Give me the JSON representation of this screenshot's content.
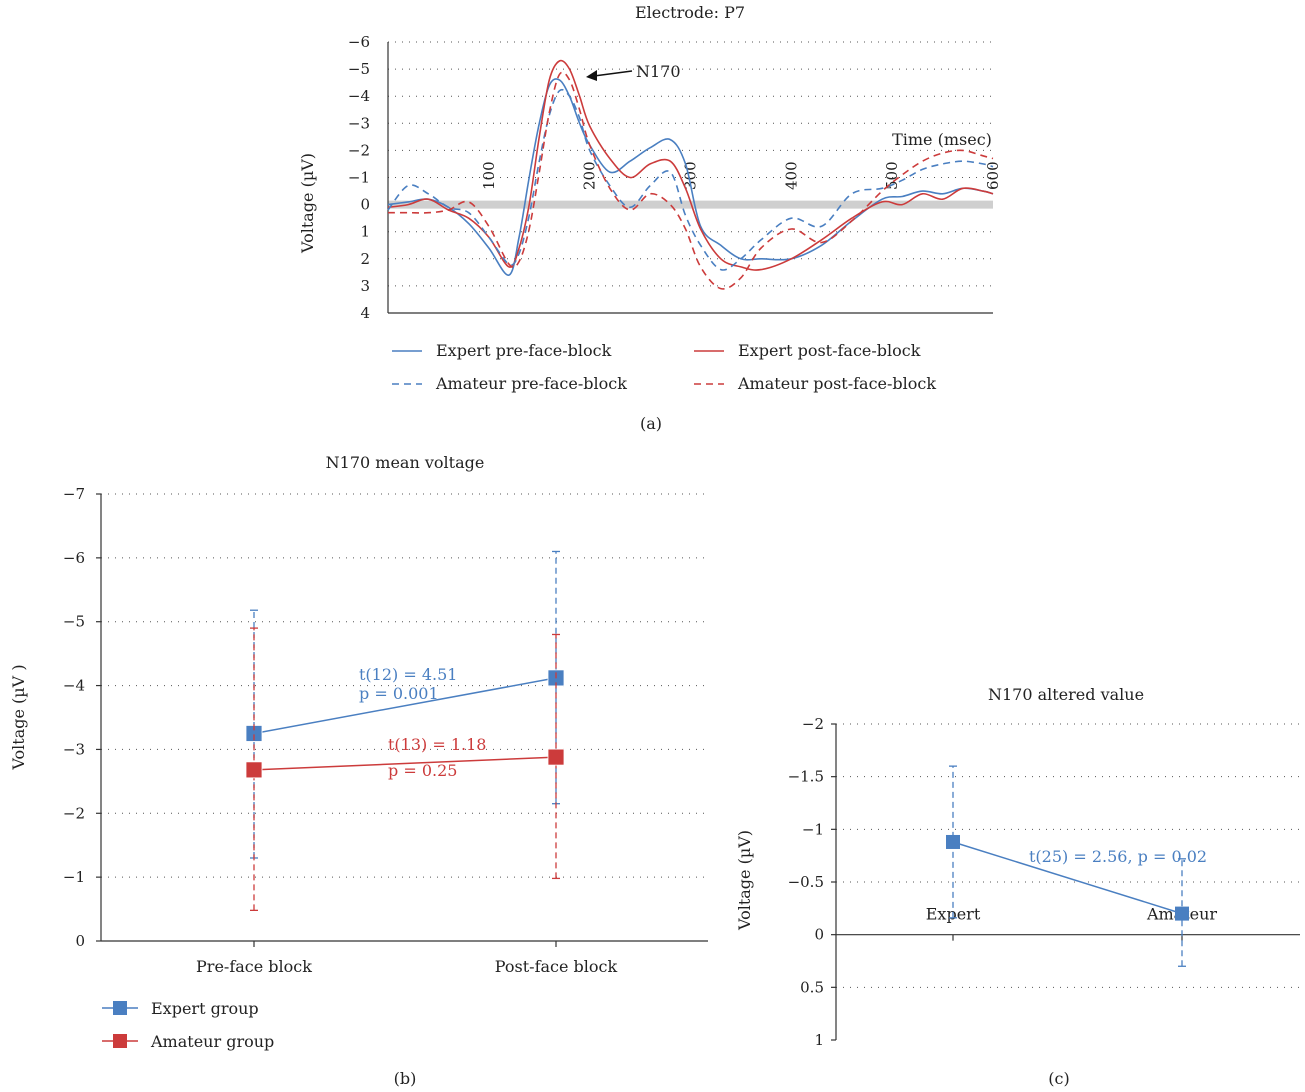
{
  "chart_data": [
    {
      "type": "line",
      "title": "Electrode: P7",
      "ylabel": "Voltage (µV)",
      "xlabel": "Time (msec)",
      "x_ticks": [
        100,
        200,
        300,
        400,
        500,
        600
      ],
      "y_ticks": [
        -6,
        -5,
        -4,
        -3,
        -2,
        -1,
        0,
        1,
        2,
        3,
        4
      ],
      "y_tick_labels": [
        "−6",
        "−5",
        "−4",
        "−3",
        "−2",
        "−1",
        "0",
        "1",
        "2",
        "3",
        "4"
      ],
      "xlim": [
        0,
        600
      ],
      "ylim": [
        -6,
        4
      ],
      "y_inverted": true,
      "grid": true,
      "annotation": "N170",
      "panel_label": "(a)",
      "legend_position": "bottom",
      "series": [
        {
          "name": "Expert pre-face-block",
          "color": "#4a7fc1",
          "dash": "solid",
          "x": [
            0,
            20,
            40,
            60,
            80,
            100,
            120,
            130,
            140,
            150,
            160,
            170,
            180,
            190,
            200,
            220,
            240,
            260,
            280,
            295,
            310,
            330,
            350,
            370,
            400,
            430,
            460,
            490,
            510,
            530,
            550,
            570,
            590,
            600
          ],
          "y": [
            0,
            -0.1,
            -0.2,
            0.1,
            0.7,
            1.6,
            2.6,
            1.2,
            -1,
            -3,
            -4.4,
            -4.6,
            -4,
            -3,
            -2.2,
            -1.2,
            -1.6,
            -2.1,
            -2.4,
            -1.5,
            0.8,
            1.5,
            2,
            2,
            2,
            1.5,
            0.6,
            -0.2,
            -0.3,
            -0.5,
            -0.4,
            -0.6,
            -0.5,
            -0.4
          ]
        },
        {
          "name": "Expert post-face-block",
          "color": "#cc3b3b",
          "dash": "solid",
          "x": [
            0,
            20,
            40,
            60,
            80,
            100,
            120,
            130,
            140,
            150,
            160,
            170,
            180,
            190,
            200,
            220,
            240,
            260,
            280,
            295,
            310,
            330,
            350,
            370,
            400,
            430,
            460,
            490,
            510,
            530,
            550,
            570,
            590,
            600
          ],
          "y": [
            0.1,
            0,
            -0.2,
            0.2,
            0.5,
            1.2,
            2.3,
            1.6,
            0,
            -2.5,
            -4.6,
            -5.3,
            -5,
            -4,
            -2.9,
            -1.7,
            -1,
            -1.5,
            -1.6,
            -0.6,
            0.9,
            2,
            2.3,
            2.4,
            2,
            1.3,
            0.5,
            -0.1,
            0,
            -0.4,
            -0.2,
            -0.6,
            -0.5,
            -0.4
          ]
        },
        {
          "name": "Amateur pre-face-block",
          "color": "#4a7fc1",
          "dash": "dashed",
          "x": [
            0,
            20,
            40,
            60,
            80,
            100,
            120,
            130,
            140,
            150,
            160,
            170,
            180,
            190,
            200,
            220,
            240,
            260,
            280,
            295,
            310,
            330,
            350,
            370,
            400,
            430,
            460,
            490,
            510,
            530,
            550,
            570,
            590,
            600
          ],
          "y": [
            0.2,
            -0.7,
            -0.4,
            0.1,
            0.3,
            1.2,
            2.2,
            1.8,
            0.4,
            -1.6,
            -3.3,
            -4.2,
            -4,
            -3.2,
            -2,
            -0.7,
            0.1,
            -0.7,
            -1.2,
            0.4,
            1.5,
            2.4,
            2,
            1.3,
            0.5,
            0.8,
            -0.4,
            -0.6,
            -0.9,
            -1.3,
            -1.5,
            -1.6,
            -1.5,
            -1.4
          ]
        },
        {
          "name": "Amateur post-face-block",
          "color": "#cc3b3b",
          "dash": "dashed",
          "x": [
            0,
            20,
            40,
            60,
            80,
            100,
            120,
            130,
            140,
            150,
            160,
            170,
            180,
            190,
            200,
            220,
            240,
            260,
            280,
            295,
            310,
            330,
            350,
            370,
            400,
            430,
            460,
            490,
            510,
            530,
            550,
            570,
            590,
            600
          ],
          "y": [
            0.3,
            0.3,
            0.3,
            0.2,
            -0.1,
            0.8,
            2.2,
            2.1,
            0.9,
            -1.2,
            -3.4,
            -4.8,
            -4.6,
            -3.5,
            -2.2,
            -0.6,
            0.2,
            -0.4,
            0,
            0.9,
            2.3,
            3.1,
            2.7,
            1.6,
            0.9,
            1.4,
            0.6,
            -0.5,
            -1.1,
            -1.6,
            -1.9,
            -2,
            -1.8,
            -1.7
          ]
        }
      ]
    },
    {
      "type": "line",
      "title": "N170 mean voltage",
      "ylabel": "Voltage (µV )",
      "xlabel": "",
      "categories": [
        "Pre-face block",
        "Post-face block"
      ],
      "y_ticks": [
        -7,
        -6,
        -5,
        -4,
        -3,
        -2,
        -1,
        0
      ],
      "y_tick_labels": [
        "−7",
        "−6",
        "−5",
        "−4",
        "−3",
        "−2",
        "−1",
        "0"
      ],
      "ylim": [
        -7,
        0
      ],
      "y_inverted": true,
      "grid": true,
      "panel_label": "(b)",
      "legend_position": "bottom-left",
      "series": [
        {
          "name": "Expert group",
          "color": "#4a7fc1",
          "values": [
            -3.25,
            -4.12
          ],
          "err_low": [
            -1.3,
            -2.15
          ],
          "err_high": [
            -5.18,
            -6.1
          ]
        },
        {
          "name": "Amateur group",
          "color": "#cc3b3b",
          "values": [
            -2.68,
            -2.88
          ],
          "err_low": [
            -0.48,
            -0.98
          ],
          "err_high": [
            -4.9,
            -4.8
          ]
        }
      ],
      "annotations": [
        {
          "line1": "t(12) = 4.51",
          "line2": "p = 0.001",
          "color": "#4a7fc1"
        },
        {
          "line1": "t(13) = 1.18",
          "line2": "p = 0.25",
          "color": "#cc3b3b"
        }
      ]
    },
    {
      "type": "line",
      "title": "N170 altered value",
      "ylabel": "Voltage (µV)",
      "xlabel": "",
      "categories": [
        "Expert",
        "Amateur"
      ],
      "y_ticks": [
        -2,
        -1.5,
        -1,
        -0.5,
        0,
        0.5,
        1
      ],
      "y_tick_labels": [
        "−2",
        "−1.5",
        "−1",
        "−0.5",
        "0",
        "0.5",
        "1"
      ],
      "ylim": [
        -2,
        1
      ],
      "y_inverted": true,
      "grid": true,
      "panel_label": "(c)",
      "series": [
        {
          "color": "#4a7fc1",
          "values": [
            -0.88,
            -0.2
          ],
          "err_low": [
            -0.16,
            0.3
          ],
          "err_high": [
            -1.6,
            -0.72
          ]
        }
      ],
      "annotation": "t(25) = 2.56, p = 0.02"
    }
  ]
}
